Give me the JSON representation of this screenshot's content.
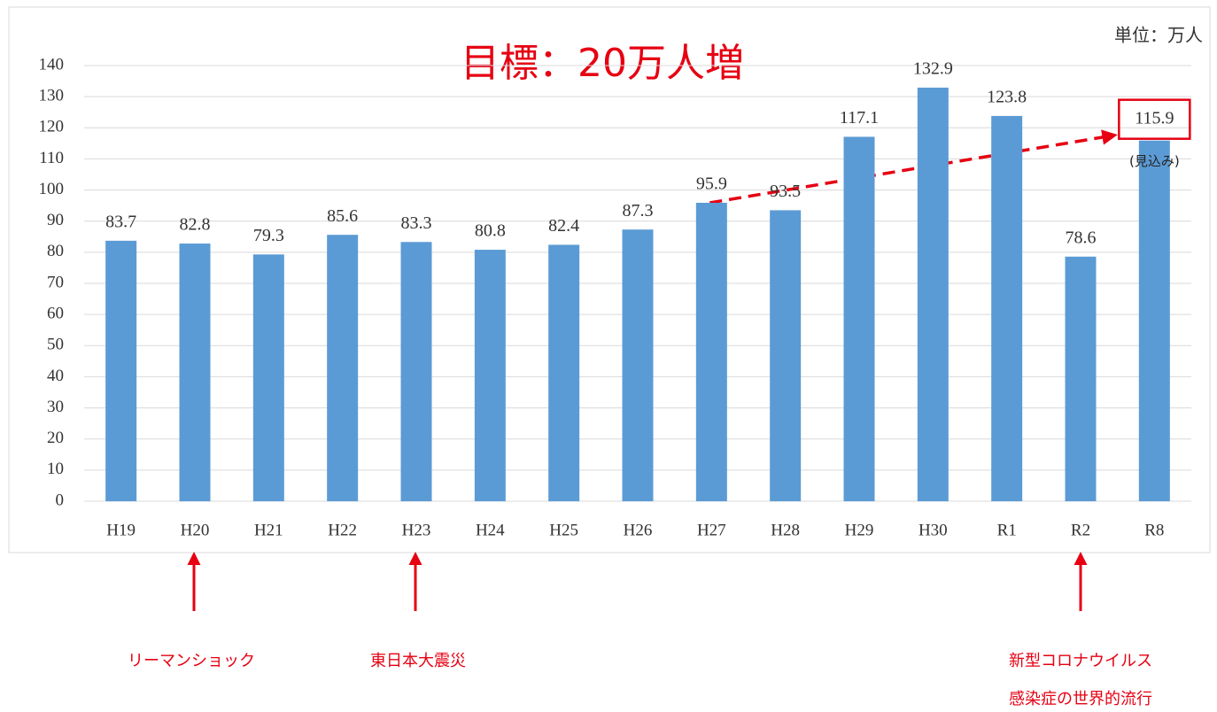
{
  "chart_data": {
    "type": "bar",
    "title": "目標：20万人増",
    "unit_label": "単位：万人",
    "estimate_note": "(見込み)",
    "events": [
      "リーマンショック",
      "東日本大震災",
      "新型コロナウイルス",
      "感染症の世界的流行"
    ],
    "categories": [
      "H19",
      "H20",
      "H21",
      "H22",
      "H23",
      "H24",
      "H25",
      "H26",
      "H27",
      "H28",
      "H29",
      "H30",
      "R1",
      "R2",
      "R8"
    ],
    "values": [
      83.7,
      82.8,
      79.3,
      85.6,
      83.3,
      80.8,
      82.4,
      87.3,
      95.9,
      93.5,
      117.1,
      132.9,
      123.8,
      78.6,
      115.9
    ],
    "color": "#5b9bd5",
    "ylim": [
      0,
      140
    ],
    "yticks": [
      0,
      10,
      20,
      30,
      40,
      50,
      60,
      70,
      80,
      90,
      100,
      110,
      120,
      130,
      140
    ],
    "grid": true
  }
}
